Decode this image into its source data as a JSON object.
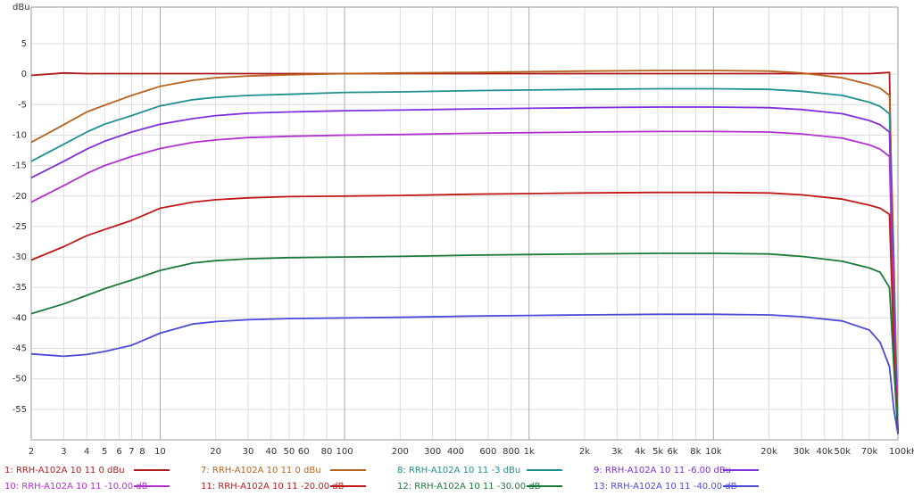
{
  "chart_data": {
    "type": "line",
    "y_label": "dBu",
    "xscale": "log",
    "grid": true,
    "xlim": [
      2,
      100000
    ],
    "ylim": [
      -60,
      11
    ],
    "yticks": [
      5,
      0,
      -5,
      -10,
      -15,
      -20,
      -25,
      -30,
      -35,
      -40,
      -45,
      -50,
      -55
    ],
    "xticks": [
      2,
      3,
      4,
      5,
      6,
      7,
      8,
      10,
      20,
      30,
      40,
      50,
      60,
      80,
      100,
      200,
      300,
      400,
      600,
      800,
      {
        "value": 1000,
        "label": "1k"
      },
      {
        "value": 2000,
        "label": "2k"
      },
      {
        "value": 3000,
        "label": "3k"
      },
      {
        "value": 4000,
        "label": "4k"
      },
      {
        "value": 5000,
        "label": "5k"
      },
      {
        "value": 6000,
        "label": "6k"
      },
      {
        "value": 8000,
        "label": "8k"
      },
      {
        "value": 10000,
        "label": "10k"
      },
      {
        "value": 20000,
        "label": "20k"
      },
      {
        "value": 30000,
        "label": "30k"
      },
      {
        "value": 40000,
        "label": "40k"
      },
      {
        "value": 50000,
        "label": "50k"
      },
      {
        "value": 70000,
        "label": "70k"
      },
      {
        "value": 100000,
        "label": "100kHz"
      }
    ],
    "x": [
      2,
      3,
      4,
      5,
      7,
      10,
      15,
      20,
      30,
      50,
      100,
      200,
      500,
      1000,
      2000,
      5000,
      10000,
      20000,
      30000,
      50000,
      70000,
      80000,
      90000,
      95000,
      100000
    ],
    "series": [
      {
        "name": "1: RRH-A102A 10 11 0 dBu",
        "color": "#b01c1c",
        "values": [
          -0.2,
          0.2,
          0.1,
          0.1,
          0.1,
          0.1,
          0.1,
          0.1,
          0.1,
          0.1,
          0.1,
          0.1,
          0.1,
          0.1,
          0.1,
          0.1,
          0.1,
          0.1,
          0.1,
          0.1,
          0.1,
          0.2,
          0.3,
          -40,
          -59
        ]
      },
      {
        "name": "7: RRH-A102A 10 11 0 dBu",
        "color": "#b8621e",
        "values": [
          -11.2,
          -8.3,
          -6.2,
          -5.1,
          -3.5,
          -2.0,
          -1.0,
          -0.6,
          -0.3,
          -0.1,
          0.1,
          0.2,
          0.3,
          0.4,
          0.5,
          0.6,
          0.6,
          0.5,
          0.2,
          -0.6,
          -1.7,
          -2.3,
          -3.5,
          -30,
          -59
        ]
      },
      {
        "name": "8: RRH-A102A 10 11 -3 dBu",
        "color": "#1e9090",
        "values": [
          -14.3,
          -11.5,
          -9.5,
          -8.2,
          -6.8,
          -5.2,
          -4.2,
          -3.8,
          -3.5,
          -3.3,
          -3.0,
          -2.9,
          -2.7,
          -2.6,
          -2.5,
          -2.4,
          -2.4,
          -2.5,
          -2.8,
          -3.5,
          -4.6,
          -5.3,
          -6.5,
          -35,
          -59
        ]
      },
      {
        "name": "9: RRH-A102A 10 11 -6.00 dBu",
        "color": "#7f2fdc",
        "values": [
          -17.0,
          -14.3,
          -12.3,
          -11.0,
          -9.5,
          -8.2,
          -7.3,
          -6.8,
          -6.4,
          -6.2,
          -6.0,
          -5.9,
          -5.7,
          -5.6,
          -5.5,
          -5.4,
          -5.4,
          -5.5,
          -5.8,
          -6.5,
          -7.6,
          -8.3,
          -9.5,
          -38,
          -59
        ]
      },
      {
        "name": "10: RRH-A102A 10 11 -10.00 dB",
        "color": "#b030d0",
        "values": [
          -21.0,
          -18.3,
          -16.3,
          -15.0,
          -13.5,
          -12.2,
          -11.2,
          -10.8,
          -10.4,
          -10.2,
          -10.0,
          -9.9,
          -9.7,
          -9.6,
          -9.5,
          -9.4,
          -9.4,
          -9.5,
          -9.8,
          -10.5,
          -11.6,
          -12.3,
          -13.5,
          -42,
          -59
        ]
      },
      {
        "name": "11: RRH-A102A 10 11 -20.00 dB",
        "color": "#c01818",
        "values": [
          -30.5,
          -28.3,
          -26.5,
          -25.5,
          -24.0,
          -22.0,
          -21.0,
          -20.6,
          -20.3,
          -20.1,
          -20.0,
          -19.9,
          -19.7,
          -19.6,
          -19.5,
          -19.4,
          -19.4,
          -19.5,
          -19.8,
          -20.5,
          -21.5,
          -22.0,
          -23.0,
          -45,
          -59
        ]
      },
      {
        "name": "12: RRH-A102A 10 11 -30.00 dB",
        "color": "#1a7a3a",
        "values": [
          -39.3,
          -37.7,
          -36.3,
          -35.2,
          -33.8,
          -32.2,
          -31.0,
          -30.6,
          -30.3,
          -30.1,
          -30.0,
          -29.9,
          -29.7,
          -29.6,
          -29.5,
          -29.4,
          -29.4,
          -29.5,
          -29.9,
          -30.7,
          -31.8,
          -32.5,
          -35,
          -48,
          -59
        ]
      },
      {
        "name": "13: RRH-A102A 10 11 -40.00 dB",
        "color": "#4a4ad8",
        "values": [
          -45.9,
          -46.3,
          -46.0,
          -45.5,
          -44.5,
          -42.5,
          -41.0,
          -40.6,
          -40.3,
          -40.1,
          -40.0,
          -39.9,
          -39.7,
          -39.6,
          -39.5,
          -39.4,
          -39.4,
          -39.5,
          -39.8,
          -40.5,
          -42,
          -44,
          -48,
          -55,
          -59
        ]
      }
    ]
  }
}
